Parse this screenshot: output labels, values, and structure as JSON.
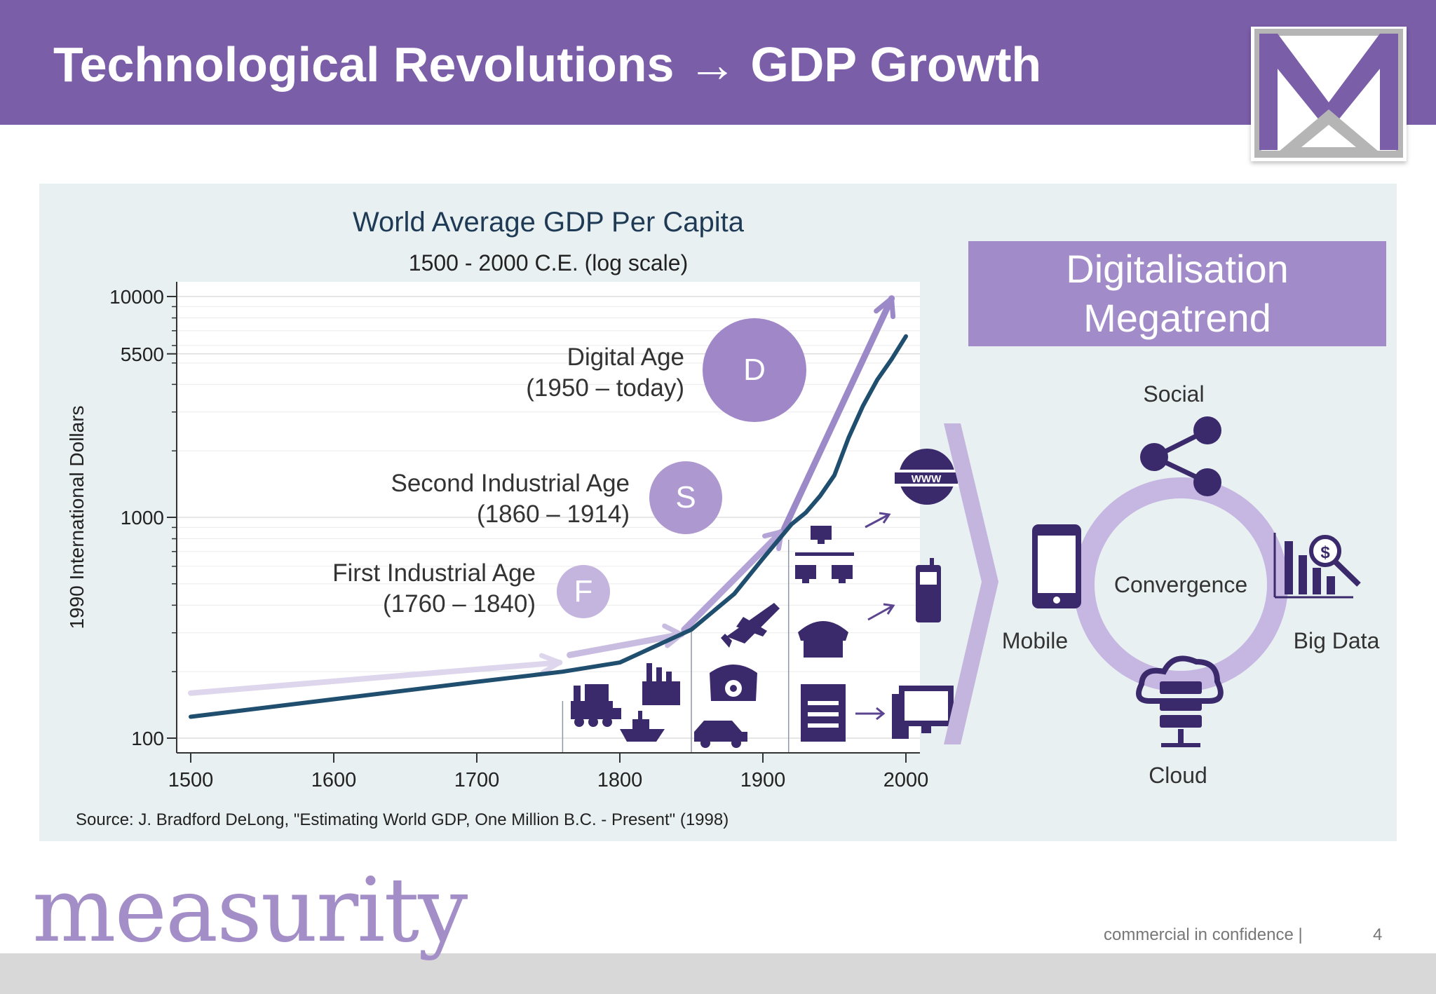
{
  "header": {
    "title": "Technological Revolutions → GDP Growth"
  },
  "chart_data": {
    "type": "line",
    "title": "World Average GDP Per Capita",
    "subtitle": "1500 - 2000 C.E. (log scale)",
    "ylabel": "1990 International Dollars",
    "xlabel": "",
    "yscale": "log",
    "xlim": [
      1500,
      2000
    ],
    "ylim": [
      100,
      10000
    ],
    "x_ticks": [
      "1500",
      "1600",
      "1700",
      "1800",
      "1900",
      "2000"
    ],
    "y_ticks": [
      "100",
      "1000",
      "5500",
      "10000"
    ],
    "x": [
      1500,
      1600,
      1700,
      1760,
      1800,
      1850,
      1880,
      1900,
      1913,
      1920,
      1930,
      1940,
      1950,
      1960,
      1970,
      1980,
      1990,
      2000
    ],
    "y": [
      125,
      150,
      180,
      200,
      220,
      310,
      450,
      650,
      820,
      930,
      1050,
      1250,
      1550,
      2300,
      3200,
      4200,
      5200,
      6600
    ],
    "color": "#1f4e6e",
    "source": "Source: J. Bradford DeLong, \"Estimating World GDP, One Million B.C. - Present\" (1998)"
  },
  "ages": [
    {
      "name": "Digital Age",
      "period": "(1950 – today)",
      "letter": "D",
      "color": "#9f87c8"
    },
    {
      "name": "Second Industrial Age",
      "period": "(1860 – 1914)",
      "letter": "S",
      "color": "#ad98d0"
    },
    {
      "name": "First Industrial Age",
      "period": "(1760 – 1840)",
      "letter": "F",
      "color": "#c3b5de"
    }
  ],
  "megatrend": {
    "title_line1": "Digitalisation",
    "title_line2": "Megatrend",
    "center": "Convergence",
    "items": [
      "Social",
      "Mobile",
      "Big Data",
      "Cloud"
    ]
  },
  "colors": {
    "header": "#7b5ea8",
    "accent": "#a18bc8",
    "icon": "#3b2a6b"
  },
  "footer": {
    "brand": "measurity",
    "confidential": "commercial in confidence |",
    "page": "4"
  }
}
